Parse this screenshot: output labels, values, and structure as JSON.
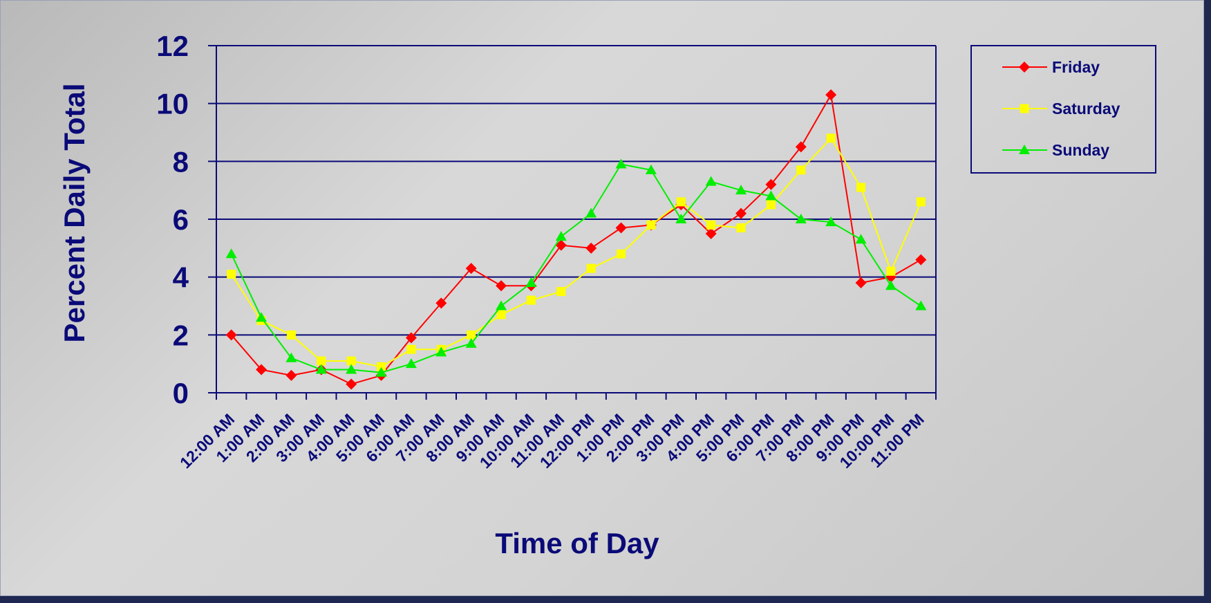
{
  "chart_data": {
    "type": "line",
    "title": "",
    "xlabel": "Time of Day",
    "ylabel": "Percent Daily Total",
    "ylim": [
      0,
      12
    ],
    "yticks": [
      0,
      2,
      4,
      6,
      8,
      10,
      12
    ],
    "grid": true,
    "legend_position": "top-right",
    "categories": [
      "12:00 AM",
      "1:00 AM",
      "2:00 AM",
      "3:00 AM",
      "4:00 AM",
      "5:00 AM",
      "6:00 AM",
      "7:00 AM",
      "8:00 AM",
      "9:00 AM",
      "10:00 AM",
      "11:00 AM",
      "12:00 PM",
      "1:00 PM",
      "2:00 PM",
      "3:00 PM",
      "4:00 PM",
      "5:00 PM",
      "6:00 PM",
      "7:00 PM",
      "8:00 PM",
      "9:00 PM",
      "10:00 PM",
      "11:00 PM"
    ],
    "series": [
      {
        "name": "Friday",
        "color": "#ff0000",
        "marker": "diamond",
        "values": [
          2.0,
          0.8,
          0.6,
          0.8,
          0.3,
          0.6,
          1.9,
          3.1,
          4.3,
          3.7,
          3.7,
          5.1,
          5.0,
          5.7,
          5.8,
          6.5,
          5.5,
          6.2,
          7.2,
          8.5,
          10.3,
          3.8,
          4.0,
          4.6
        ]
      },
      {
        "name": "Saturday",
        "color": "#ffff00",
        "marker": "square",
        "values": [
          4.1,
          2.5,
          2.0,
          1.1,
          1.1,
          0.9,
          1.5,
          1.5,
          2.0,
          2.7,
          3.2,
          3.5,
          4.3,
          4.8,
          5.8,
          6.6,
          5.8,
          5.7,
          6.5,
          7.7,
          8.8,
          7.1,
          4.2,
          6.6
        ]
      },
      {
        "name": "Sunday",
        "color": "#00ee00",
        "marker": "triangle",
        "values": [
          4.8,
          2.6,
          1.2,
          0.8,
          0.8,
          0.7,
          1.0,
          1.4,
          1.7,
          3.0,
          3.8,
          5.4,
          6.2,
          7.9,
          7.7,
          6.0,
          7.3,
          7.0,
          6.8,
          6.0,
          5.9,
          5.3,
          3.7,
          3.0
        ]
      }
    ]
  }
}
